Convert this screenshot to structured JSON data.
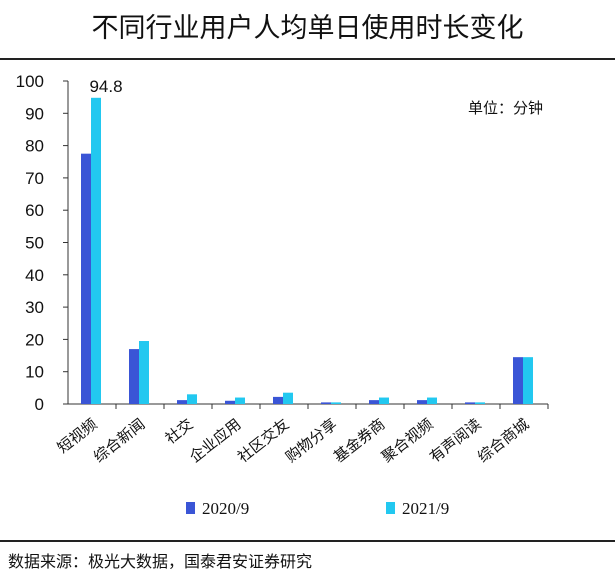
{
  "title": "不同行业用户人均单日使用时长变化",
  "unit_label": "单位：分钟",
  "source": "数据来源：极光大数据，国泰君安证券研究",
  "colors": {
    "s2020": "#3a55d6",
    "s2021": "#22c8f0"
  },
  "chart_data": {
    "type": "bar",
    "categories": [
      "短视频",
      "综合新闻",
      "社交",
      "企业应用",
      "社区交友",
      "购物分享",
      "基金券商",
      "聚合视频",
      "有声阅读",
      "综合商城"
    ],
    "series": [
      {
        "name": "2020/9",
        "values": [
          77.5,
          17,
          1.2,
          1.0,
          2.2,
          0.5,
          1.2,
          1.2,
          0.5,
          14.5
        ]
      },
      {
        "name": "2021/9",
        "values": [
          94.8,
          19.5,
          3.0,
          2.0,
          3.5,
          0.5,
          2.0,
          2.0,
          0.5,
          14.5
        ]
      }
    ],
    "data_labels": [
      {
        "series": "2021/9",
        "category": "短视频",
        "text": "94.8"
      }
    ],
    "yticks": [
      "0",
      "10",
      "20",
      "30",
      "40",
      "50",
      "60",
      "70",
      "80",
      "90",
      "100"
    ],
    "ylim": [
      0,
      100
    ],
    "legend_position": "bottom",
    "grid": false
  }
}
